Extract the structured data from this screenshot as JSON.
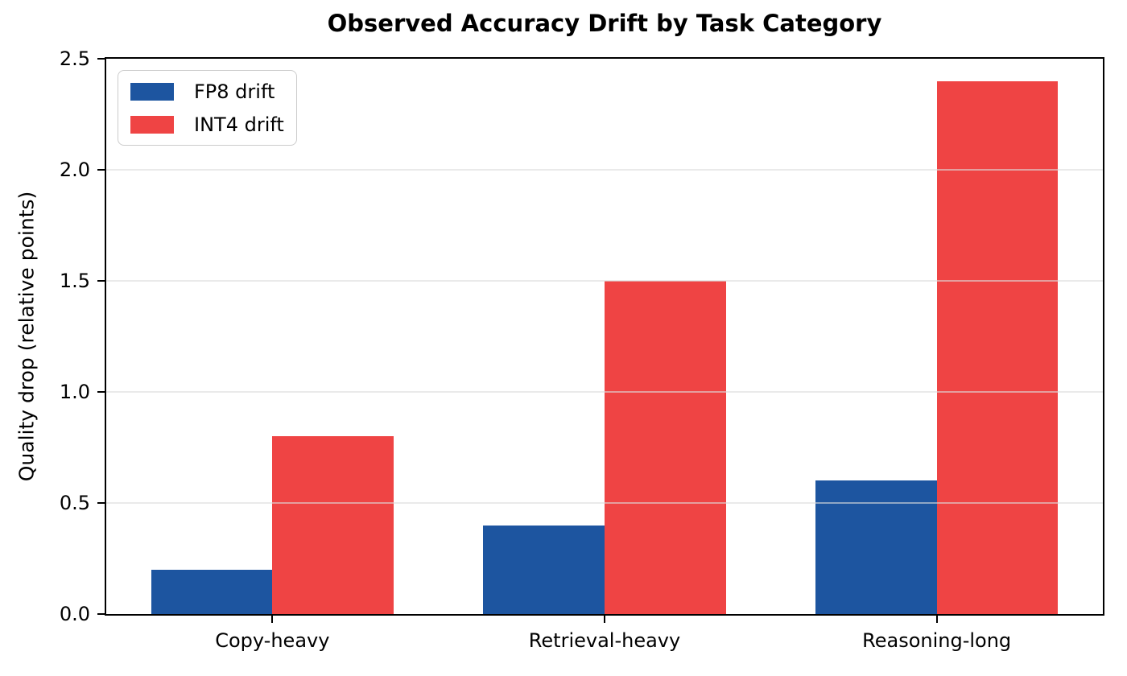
{
  "chart_data": {
    "type": "bar",
    "title": "Observed Accuracy Drift by Task Category",
    "xlabel": "",
    "ylabel": "Quality drop (relative points)",
    "categories": [
      "Copy-heavy",
      "Retrieval-heavy",
      "Reasoning-long"
    ],
    "series": [
      {
        "name": "FP8 drift",
        "color": "#1d55a0",
        "values": [
          0.2,
          0.4,
          0.6
        ]
      },
      {
        "name": "INT4 drift",
        "color": "#ef4444",
        "values": [
          0.8,
          1.5,
          2.4
        ]
      }
    ],
    "ylim": [
      0,
      2.5
    ],
    "yticks": [
      {
        "value": 0.0,
        "label": "0.0"
      },
      {
        "value": 0.5,
        "label": "0.5"
      },
      {
        "value": 1.0,
        "label": "1.0"
      },
      {
        "value": 1.5,
        "label": "1.5"
      },
      {
        "value": 2.0,
        "label": "2.0"
      },
      {
        "value": 2.5,
        "label": "2.5"
      }
    ],
    "grid": "horizontal",
    "grid_color": "rgba(220,220,220,0.6)",
    "bar_width": 0.365,
    "legend_position": "upper-left",
    "axis_color": "#000000"
  }
}
